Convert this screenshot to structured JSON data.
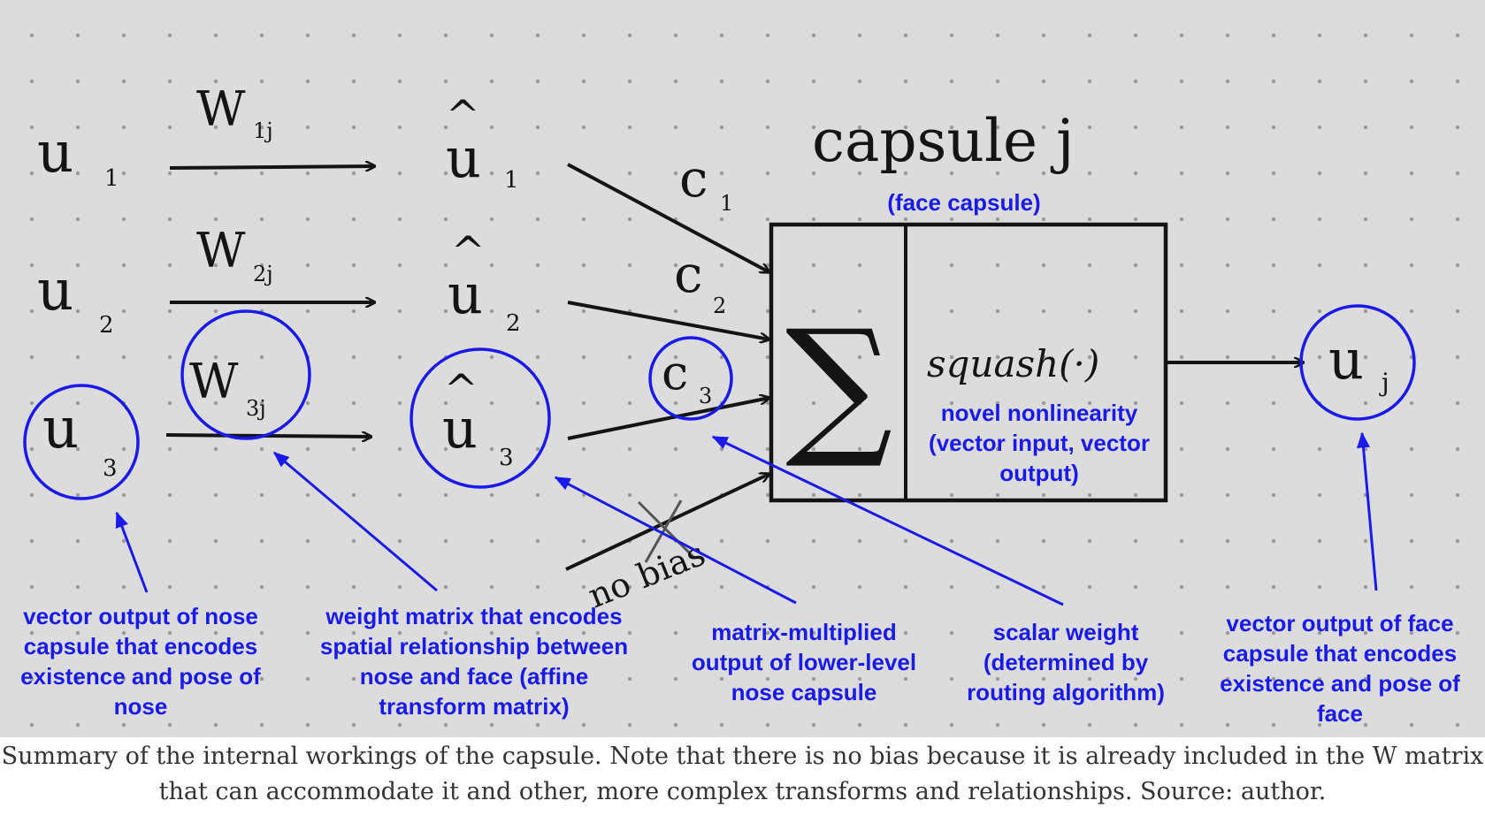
{
  "colors": {
    "ink": "#141414",
    "annotation": "#1a1aee",
    "paper": "#dcdcdc",
    "dots": "#9a9a9a"
  },
  "inputs": [
    {
      "u": "u",
      "sub": "1"
    },
    {
      "u": "u",
      "sub": "2"
    },
    {
      "u": "u",
      "sub": "3"
    }
  ],
  "weights": [
    {
      "w": "W",
      "sub": "1j"
    },
    {
      "w": "W",
      "sub": "2j"
    },
    {
      "w": "W",
      "sub": "3j"
    }
  ],
  "predictions": [
    {
      "hat": "^",
      "u": "u",
      "sub": "1"
    },
    {
      "hat": "^",
      "u": "u",
      "sub": "2"
    },
    {
      "hat": "^",
      "u": "u",
      "sub": "3"
    }
  ],
  "coupling": [
    {
      "c": "c",
      "sub": "1"
    },
    {
      "c": "c",
      "sub": "2"
    },
    {
      "c": "c",
      "sub": "3"
    }
  ],
  "capsule": {
    "title": "capsule j",
    "subtitle": "(face capsule)",
    "sum_symbol": "∑",
    "squash": "squash(·)",
    "squash_note": "novel nonlinearity (vector input, vector output)"
  },
  "bias_note": "no bias",
  "output": {
    "u": "u",
    "sub": "j"
  },
  "annotations": {
    "input": "vector output of nose capsule that encodes existence and pose of nose",
    "weight": "weight matrix that encodes spatial relationship between nose and face (affine transform matrix)",
    "prediction": "matrix-multiplied output of lower-level nose capsule",
    "coupling": "scalar weight (determined by routing algorithm)",
    "output": "vector output of face capsule that encodes existence and pose of face"
  },
  "caption": "Summary of the internal workings of the capsule. Note that there is no bias because it is already included in the W matrix that can accommodate it and other, more complex transforms and relationships. Source: author."
}
